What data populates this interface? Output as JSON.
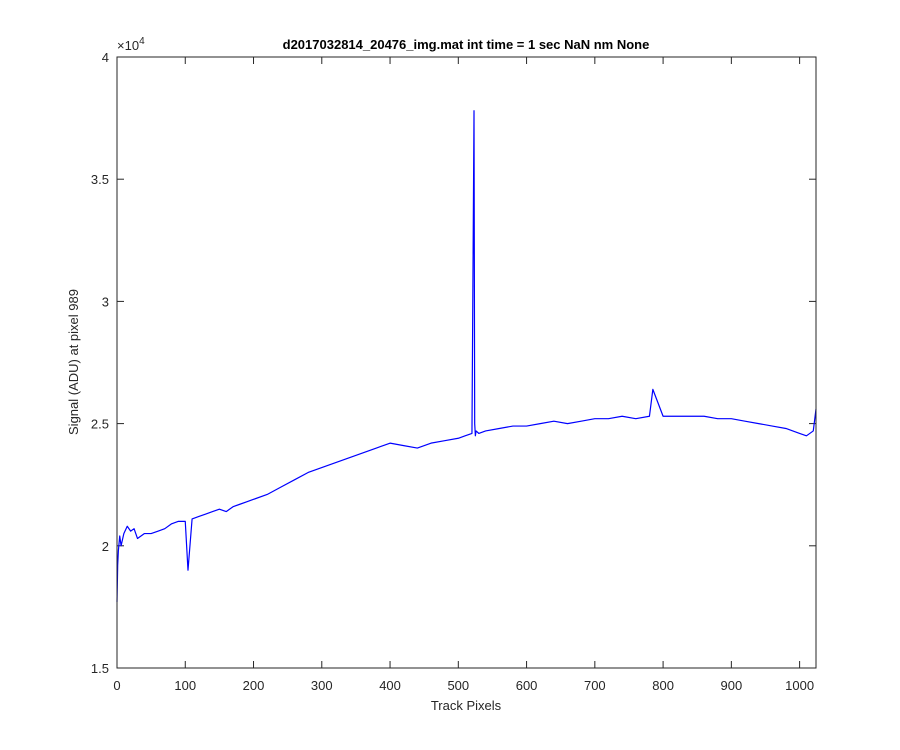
{
  "chart_data": {
    "type": "line",
    "title": "d2017032814_20476_img.mat int time = 1 sec  NaN nm None",
    "xlabel": "Track Pixels",
    "ylabel": "Signal (ADU) at pixel 989",
    "xlim": [
      0,
      1024
    ],
    "ylim": [
      15000,
      40000
    ],
    "x_ticks": [
      0,
      100,
      200,
      300,
      400,
      500,
      600,
      700,
      800,
      900,
      1000
    ],
    "y_ticks": [
      15000,
      20000,
      25000,
      30000,
      35000,
      40000
    ],
    "y_tick_labels": [
      "1.5",
      "2",
      "2.5",
      "3",
      "3.5",
      "4"
    ],
    "y_exponent_base": "×10",
    "y_exponent_power": "4",
    "grid": false,
    "line_color": "#0000ff",
    "series": [
      {
        "name": "",
        "x": [
          0,
          1,
          2,
          4,
          6,
          10,
          15,
          20,
          25,
          30,
          40,
          50,
          60,
          70,
          80,
          90,
          100,
          104,
          110,
          120,
          130,
          140,
          150,
          160,
          170,
          180,
          190,
          200,
          220,
          240,
          260,
          280,
          300,
          320,
          340,
          360,
          380,
          400,
          420,
          440,
          460,
          480,
          500,
          510,
          520,
          523,
          524,
          525,
          526,
          530,
          540,
          560,
          580,
          600,
          620,
          640,
          660,
          680,
          700,
          720,
          740,
          760,
          780,
          785,
          800,
          820,
          840,
          860,
          880,
          900,
          920,
          940,
          960,
          980,
          1000,
          1010,
          1020,
          1024
        ],
        "y": [
          17700,
          19200,
          19800,
          20400,
          20000,
          20500,
          20800,
          20600,
          20700,
          20300,
          20500,
          20500,
          20600,
          20700,
          20900,
          21000,
          21000,
          19000,
          21100,
          21200,
          21300,
          21400,
          21500,
          21400,
          21600,
          21700,
          21800,
          21900,
          22100,
          22400,
          22700,
          23000,
          23200,
          23400,
          23600,
          23800,
          24000,
          24200,
          24100,
          24000,
          24200,
          24300,
          24400,
          24500,
          24600,
          37800,
          25000,
          24500,
          24700,
          24600,
          24700,
          24800,
          24900,
          24900,
          25000,
          25100,
          25000,
          25100,
          25200,
          25200,
          25300,
          25200,
          25300,
          26400,
          25300,
          25300,
          25300,
          25300,
          25200,
          25200,
          25100,
          25000,
          24900,
          24800,
          24600,
          24500,
          24700,
          25600
        ]
      }
    ]
  }
}
